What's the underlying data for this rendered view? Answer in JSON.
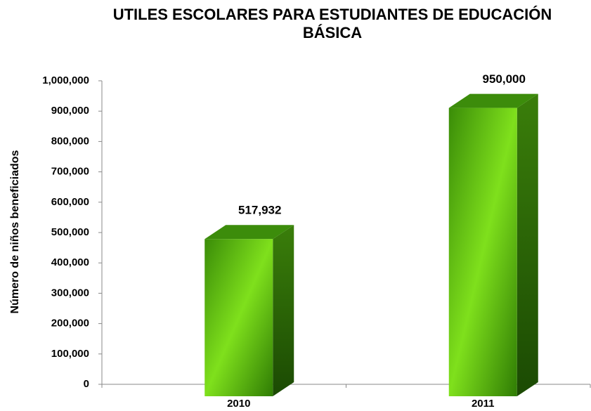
{
  "chart_data": {
    "type": "bar3d",
    "title": "UTILES ESCOLARES PARA ESTUDIANTES DE EDUCACIÓN BÁSICA",
    "y_label": "Número de niños beneficiados",
    "categories": [
      "2010",
      "2011"
    ],
    "values": [
      517932,
      950000
    ],
    "value_labels": [
      "517,932",
      "950,000"
    ],
    "color": "#5cb814",
    "ylim": [
      0,
      1000000
    ],
    "yticks": [
      0,
      {
        "value": 100000,
        "label": "100,000"
      },
      {
        "value": 200000,
        "label": "200,000"
      },
      {
        "value": 300000,
        "label": "300,000"
      },
      {
        "value": 400000,
        "label": "400,000"
      },
      {
        "value": 500000,
        "label": "500,000"
      },
      {
        "value": 600000,
        "label": "600,000"
      },
      {
        "value": 700000,
        "label": "700,000"
      },
      {
        "value": 800000,
        "label": "800,000"
      },
      {
        "value": 900000,
        "label": "900,000"
      },
      {
        "value": 1000000,
        "label": "1,000,000"
      }
    ],
    "grid": false
  }
}
